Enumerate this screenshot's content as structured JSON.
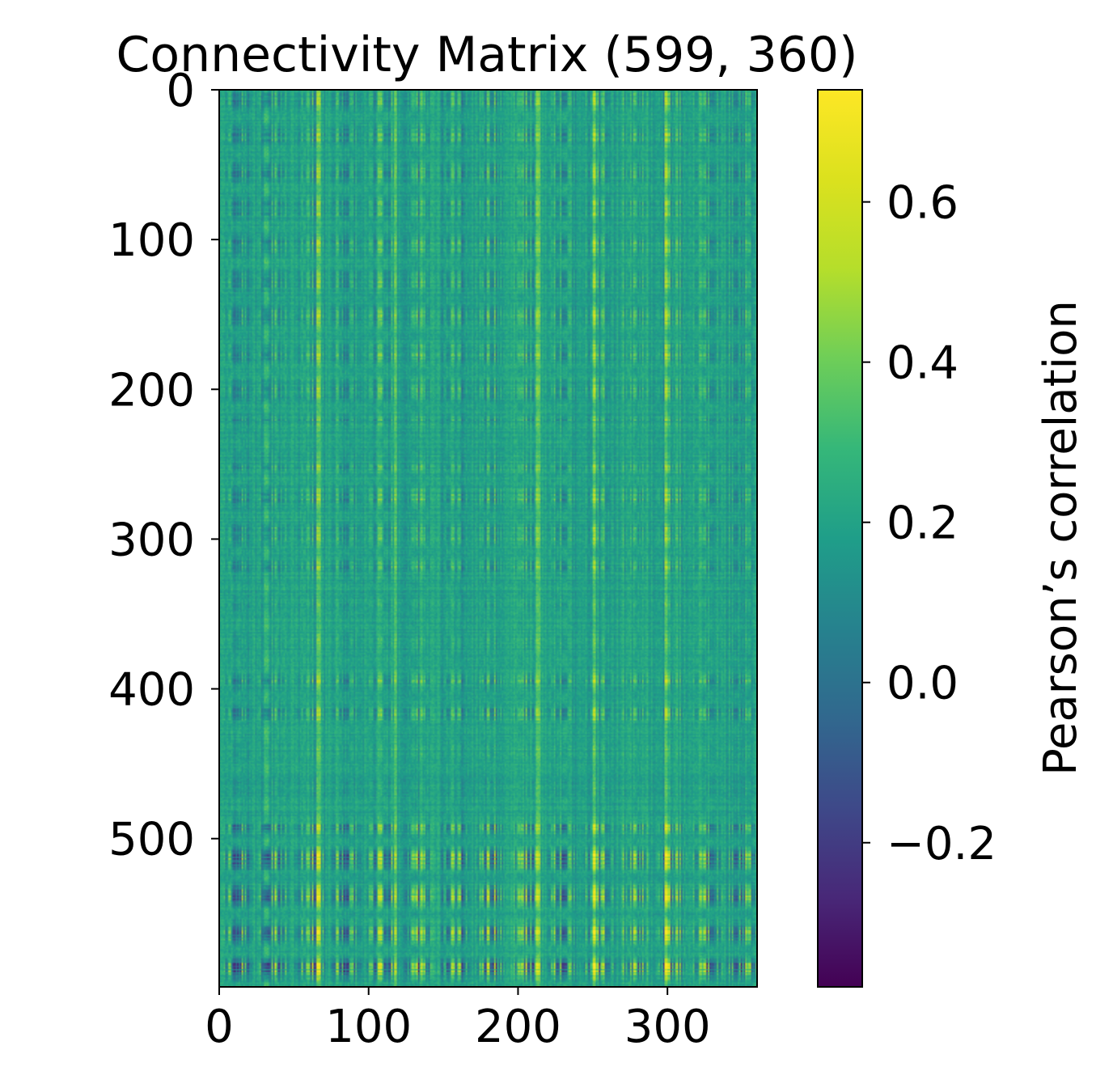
{
  "chart_data": {
    "type": "heatmap",
    "title": "Connectivity Matrix (599, 360)",
    "rows": 599,
    "cols": 360,
    "colormap": "viridis",
    "xlim": [
      0,
      360
    ],
    "ylim": [
      599,
      0
    ],
    "x_ticks": [
      0,
      100,
      200,
      300
    ],
    "x_tick_labels": [
      "0",
      "100",
      "200",
      "300"
    ],
    "y_ticks": [
      0,
      100,
      200,
      300,
      400,
      500
    ],
    "y_tick_labels": [
      "0",
      "100",
      "200",
      "300",
      "400",
      "500"
    ],
    "colorbar": {
      "label": "Pearson’s correlation",
      "range": [
        -0.38,
        0.74
      ],
      "ticks": [
        -0.2,
        0.0,
        0.2,
        0.4,
        0.6
      ],
      "tick_labels": [
        "−0.2",
        "0.0",
        "0.2",
        "0.4",
        "0.6"
      ]
    },
    "value_summary": {
      "typical": 0.2,
      "max": 0.74,
      "min": -0.38
    }
  }
}
